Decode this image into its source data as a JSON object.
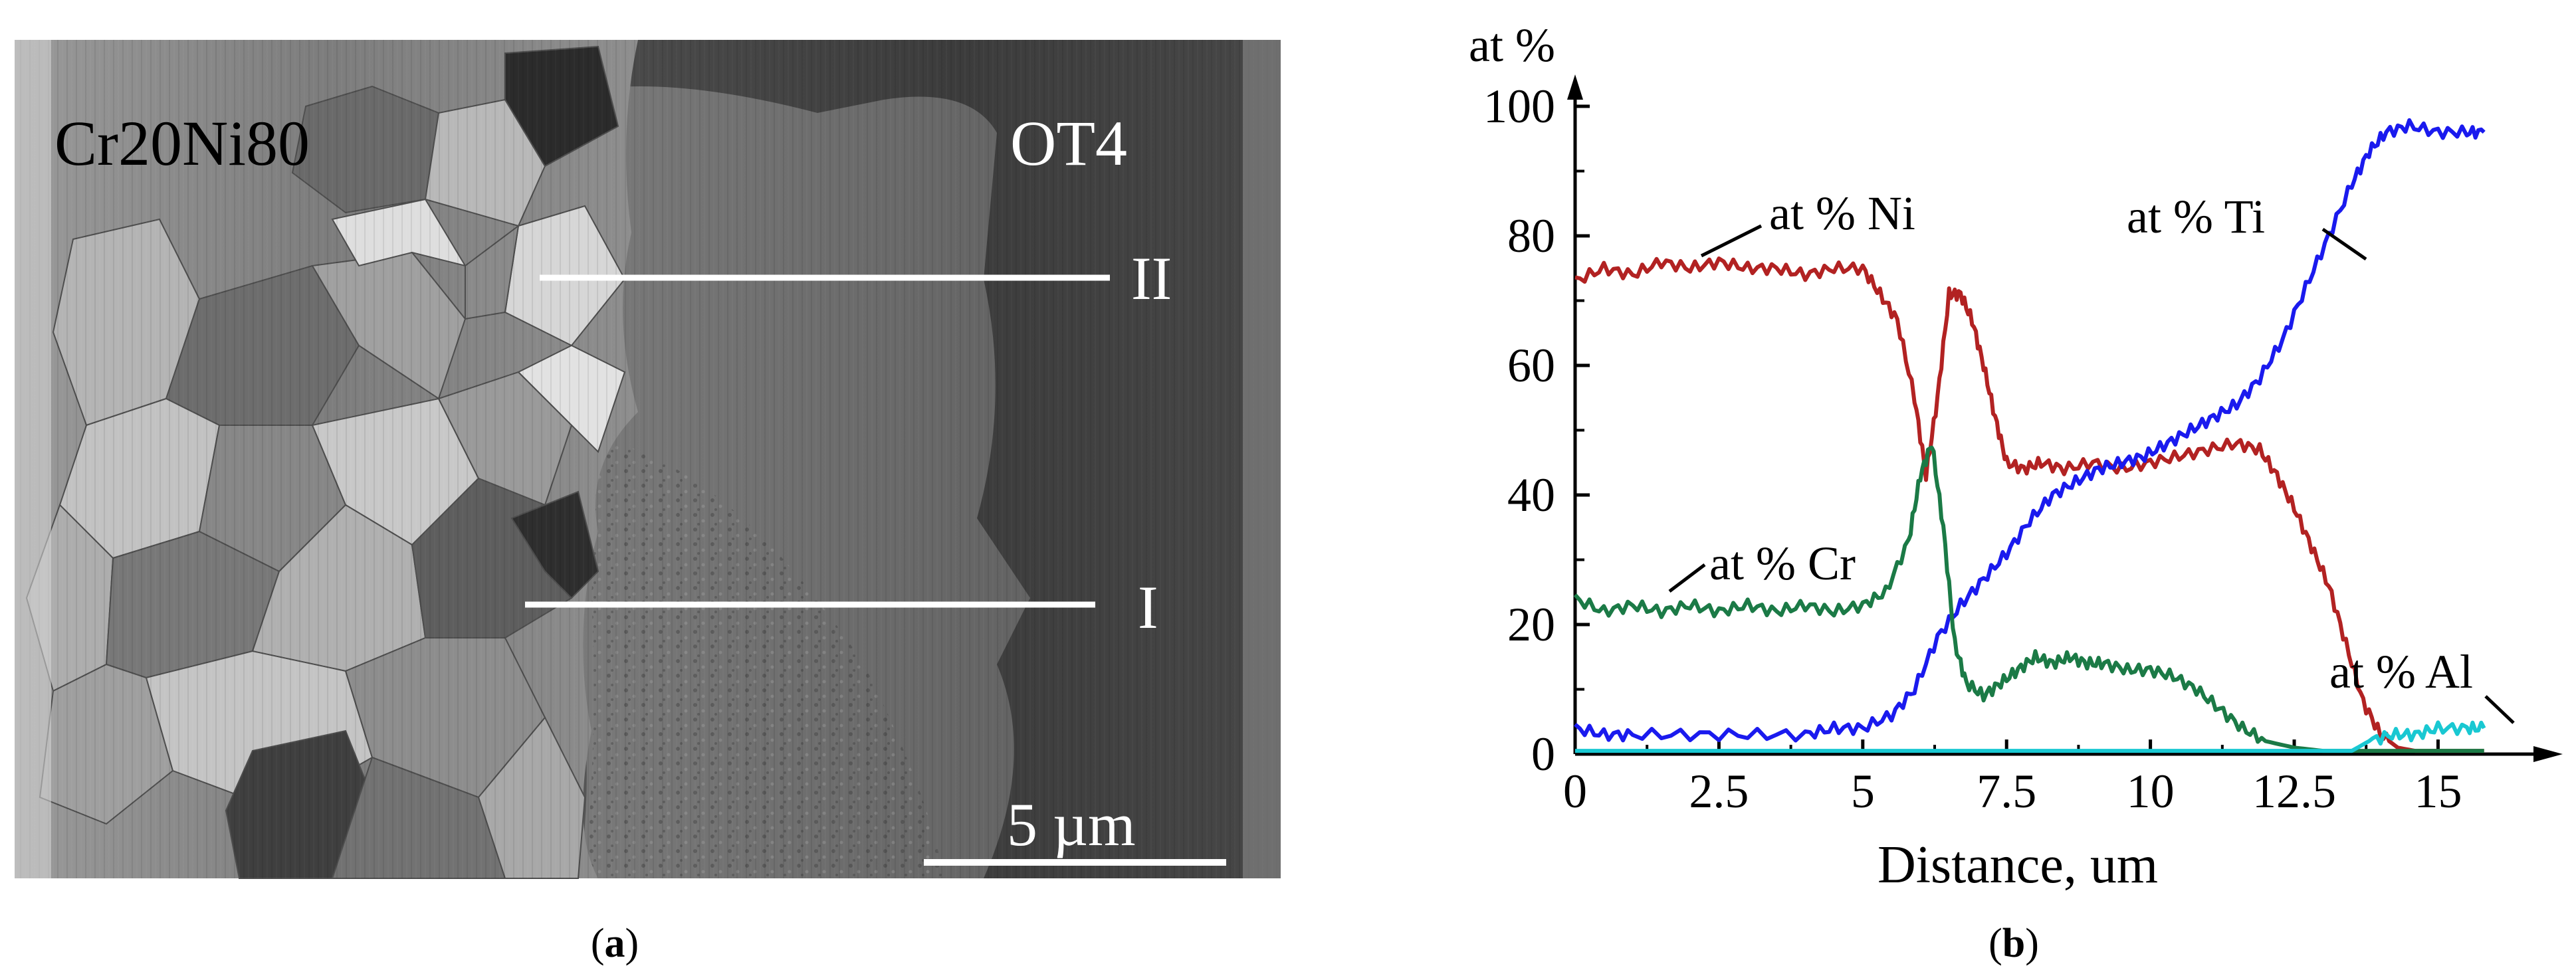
{
  "panel_a": {
    "caption": "(a)",
    "caption_prefix": "(",
    "caption_letter": "a",
    "caption_suffix": ")",
    "label_left": "Cr20Ni80",
    "label_right": "OT4",
    "line_labels": [
      "II",
      "I"
    ],
    "scale_bar_text": "5 µm",
    "colors": {
      "line": "#ffffff",
      "background": "#5a5a5a"
    }
  },
  "panel_b": {
    "caption": "(b)",
    "caption_prefix": "(",
    "caption_letter": "b",
    "caption_suffix": ")"
  },
  "chart_data": {
    "type": "line",
    "title": "",
    "xlabel": "Distance, um",
    "ylabel": "at %",
    "xlim": [
      0,
      16
    ],
    "ylim": [
      0,
      100
    ],
    "x_ticks": [
      "0",
      "2.5",
      "5",
      "7.5",
      "10",
      "12.5",
      "15"
    ],
    "y_ticks": [
      "0",
      "20",
      "40",
      "60",
      "80",
      "100"
    ],
    "grid": false,
    "annotations": [
      "at % Ni",
      "at % Ti",
      "at % Cr",
      "at % Al"
    ],
    "series": [
      {
        "name": "at % Ni",
        "color": "#b22222",
        "x": [
          0,
          0.5,
          1,
          1.5,
          2,
          2.5,
          3,
          3.5,
          4,
          4.5,
          5,
          5.3,
          5.6,
          5.9,
          6.1,
          6.3,
          6.5,
          6.7,
          6.9,
          7.1,
          7.3,
          7.5,
          7.8,
          8.1,
          8.5,
          9,
          9.5,
          10,
          10.5,
          11,
          11.5,
          11.9,
          12.2,
          12.5,
          12.8,
          13.1,
          13.4,
          13.7,
          14,
          14.3,
          14.6,
          15,
          15.5,
          15.8
        ],
        "y": [
          73,
          75,
          74,
          76,
          75,
          76,
          75,
          75,
          74,
          75,
          75,
          71,
          67,
          55,
          43,
          55,
          71,
          71,
          67,
          60,
          52,
          45,
          44,
          45,
          44,
          45,
          44,
          45,
          46,
          47,
          48,
          47,
          43,
          38,
          32,
          26,
          17,
          8,
          3,
          1,
          0.5,
          0.5,
          0.5,
          0.5
        ]
      },
      {
        "name": "at % Ti",
        "color": "#1a1aee",
        "x": [
          0,
          0.5,
          1,
          2,
          3,
          4,
          4.5,
          5,
          5.5,
          5.9,
          6.3,
          6.7,
          7.1,
          7.5,
          7.9,
          8.3,
          8.7,
          9.1,
          9.5,
          9.9,
          10.3,
          10.7,
          11.1,
          11.5,
          11.9,
          12.3,
          12.7,
          13.1,
          13.5,
          13.8,
          14.1,
          14.5,
          15,
          15.5,
          15.8
        ],
        "y": [
          4,
          3,
          3,
          3,
          3,
          3,
          4,
          4,
          6,
          10,
          18,
          23,
          27,
          31,
          36,
          40,
          42,
          44,
          45,
          46,
          48,
          50,
          52,
          54,
          58,
          64,
          72,
          80,
          88,
          93,
          96,
          97,
          96,
          96,
          96
        ]
      },
      {
        "name": "at % Cr",
        "color": "#1b7a46",
        "x": [
          0,
          0.5,
          1,
          1.5,
          2,
          2.5,
          3,
          3.5,
          4,
          4.5,
          5,
          5.4,
          5.8,
          6.0,
          6.2,
          6.4,
          6.6,
          6.8,
          7.1,
          7.4,
          7.7,
          8.0,
          8.3,
          8.6,
          8.9,
          9.2,
          9.6,
          10.0,
          10.4,
          10.8,
          11.2,
          11.6,
          12.0,
          12.5,
          13.0,
          13.5,
          14,
          15,
          15.8
        ],
        "y": [
          24,
          22,
          23,
          22,
          23,
          22,
          23,
          22,
          23,
          22,
          23,
          25,
          33,
          43,
          48,
          35,
          17,
          11,
          9,
          11,
          13,
          15,
          14,
          15,
          14,
          14,
          13,
          13,
          12,
          10,
          7,
          4,
          2,
          1,
          0.5,
          0.5,
          0.5,
          0.5,
          0.5
        ]
      },
      {
        "name": "at % Al",
        "color": "#19c8d2",
        "x": [
          0,
          2,
          4,
          6,
          8,
          10,
          12,
          13.5,
          13.8,
          14.2,
          14.6,
          15,
          15.5,
          15.8
        ],
        "y": [
          0.5,
          0.5,
          0.5,
          0.5,
          0.5,
          0.5,
          0.5,
          0.5,
          2,
          3,
          3,
          4,
          4,
          4
        ]
      }
    ]
  }
}
